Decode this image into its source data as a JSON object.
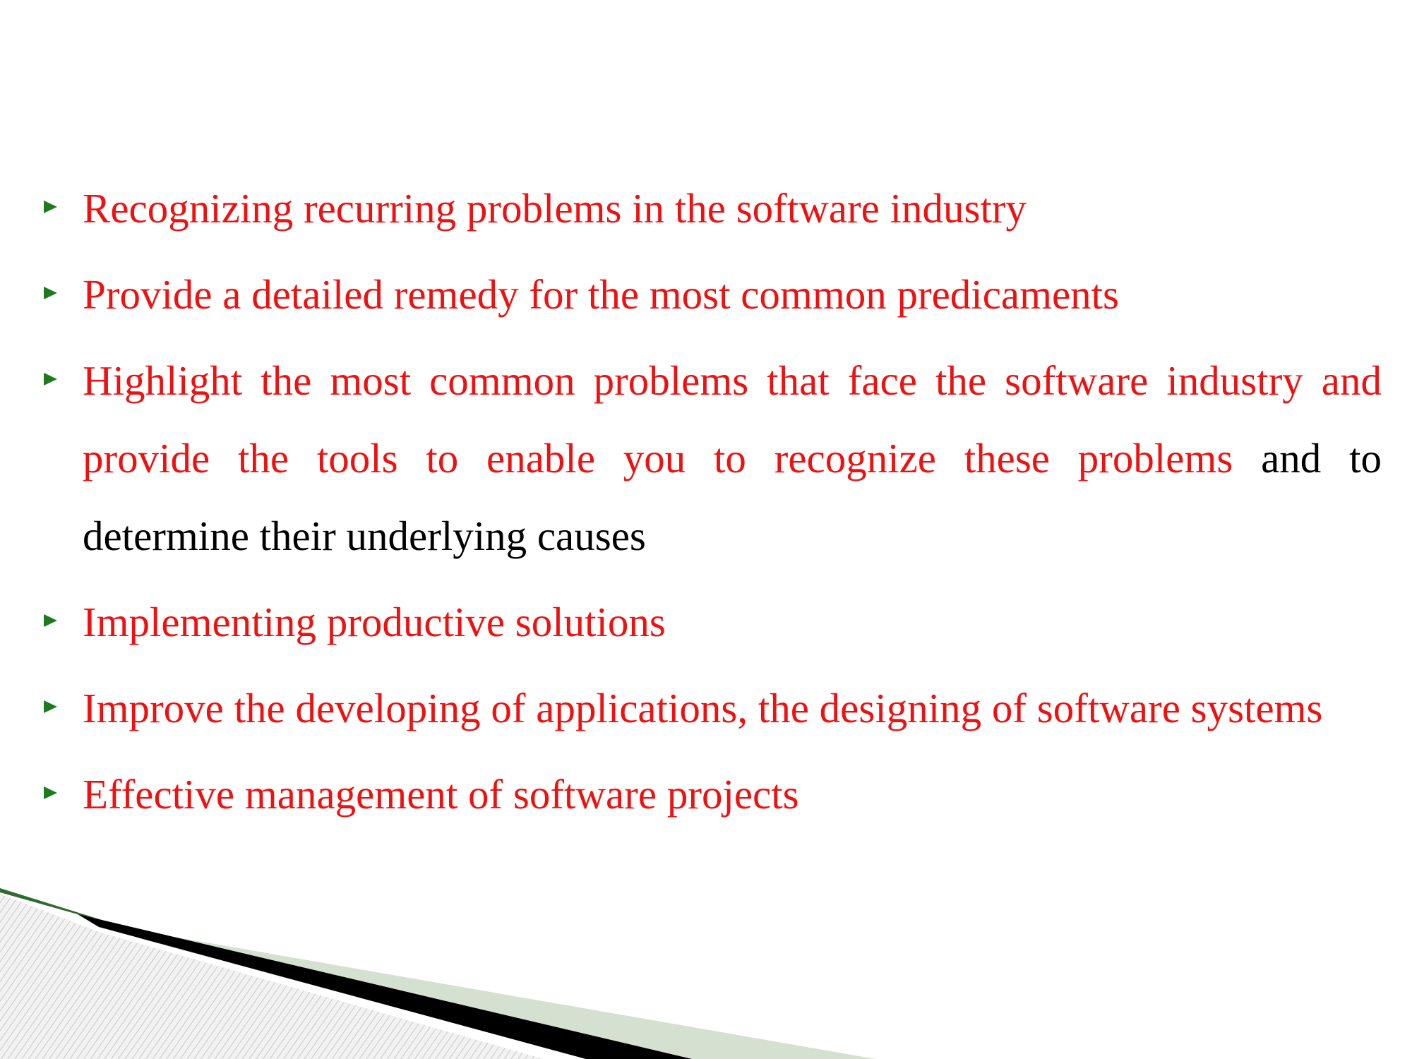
{
  "bullets": [
    {
      "text": "Recognizing recurring problems in the software industry"
    },
    {
      "text": "Provide a detailed remedy for the most common predicaments"
    },
    {
      "line1": [
        "Highlight",
        "the",
        "most",
        "common",
        "problems",
        "that",
        "face",
        "the",
        "software",
        "industry",
        "and"
      ],
      "line2_red": [
        "provide",
        "the",
        "tools",
        "to",
        "enable",
        "you",
        "to",
        "recognize",
        "these",
        "problems"
      ],
      "line2_black": [
        "and",
        "to"
      ],
      "line3": "determine their underlying causes"
    },
    {
      "text": "Implementing productive solutions"
    },
    {
      "text": "Improve the developing of applications, the designing of software systems"
    },
    {
      "text": "Effective management of software projects"
    }
  ],
  "colors": {
    "accent_text": "#ee1111",
    "bullet_arrow": "#1f7a1f",
    "plain_text": "#000000",
    "decor_band": "#d4e0d0",
    "decor_dark": "#000000"
  }
}
